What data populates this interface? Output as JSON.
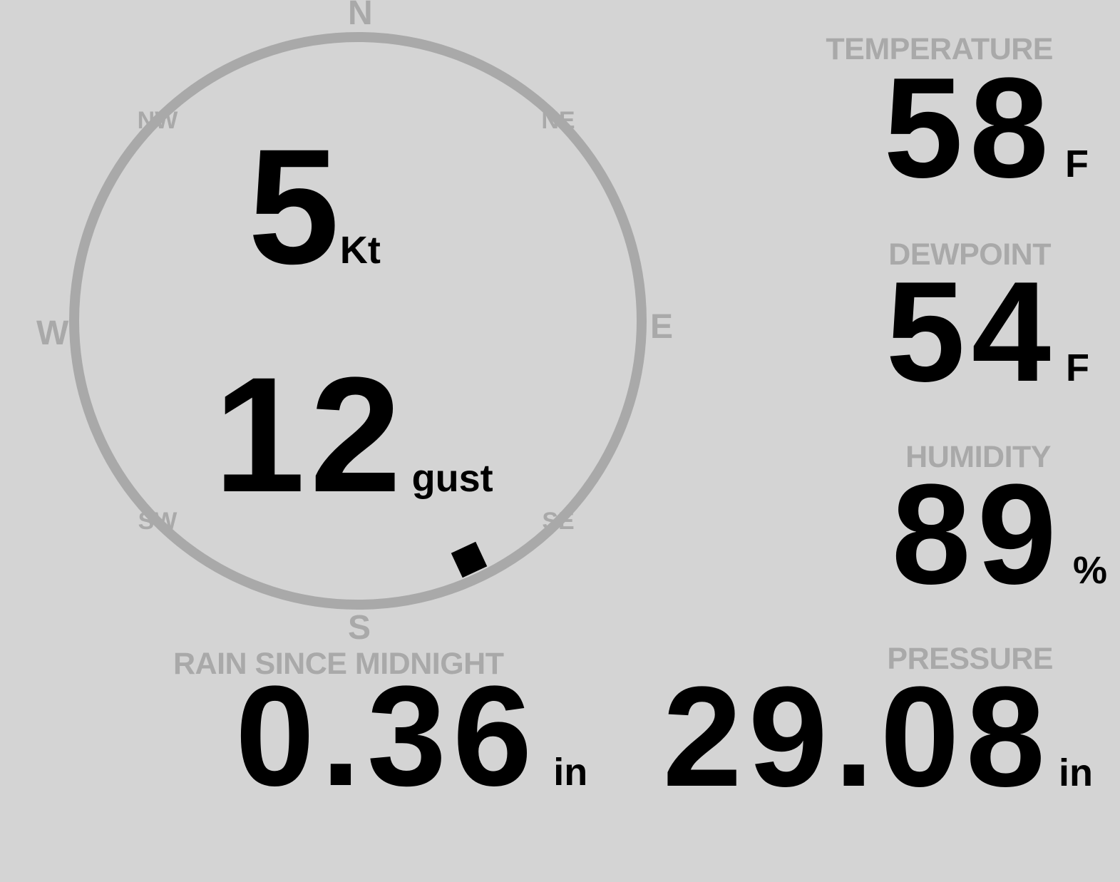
{
  "colors": {
    "background": "#d4d4d4",
    "muted": "#a9a9a9",
    "text": "#000000"
  },
  "wind_panel": {
    "compass": {
      "n": "N",
      "e": "E",
      "s": "S",
      "w": "W",
      "ne": "NE",
      "nw": "NW",
      "se": "SE",
      "sw": "SW"
    },
    "speed_value": "5",
    "speed_unit": "Kt",
    "gust_value": "12",
    "gust_unit": "gust",
    "direction_degrees": 155
  },
  "metrics": {
    "temperature": {
      "label": "TEMPERATURE",
      "value": "58",
      "unit": "F"
    },
    "dewpoint": {
      "label": "DEWPOINT",
      "value": "54",
      "unit": "F"
    },
    "humidity": {
      "label": "HUMIDITY",
      "value": "89",
      "unit": "%"
    },
    "rain": {
      "label": "RAIN SINCE MIDNIGHT",
      "value": "0.36",
      "unit": "in"
    },
    "pressure": {
      "label": "PRESSURE",
      "value": "29.08",
      "unit": "in"
    }
  }
}
